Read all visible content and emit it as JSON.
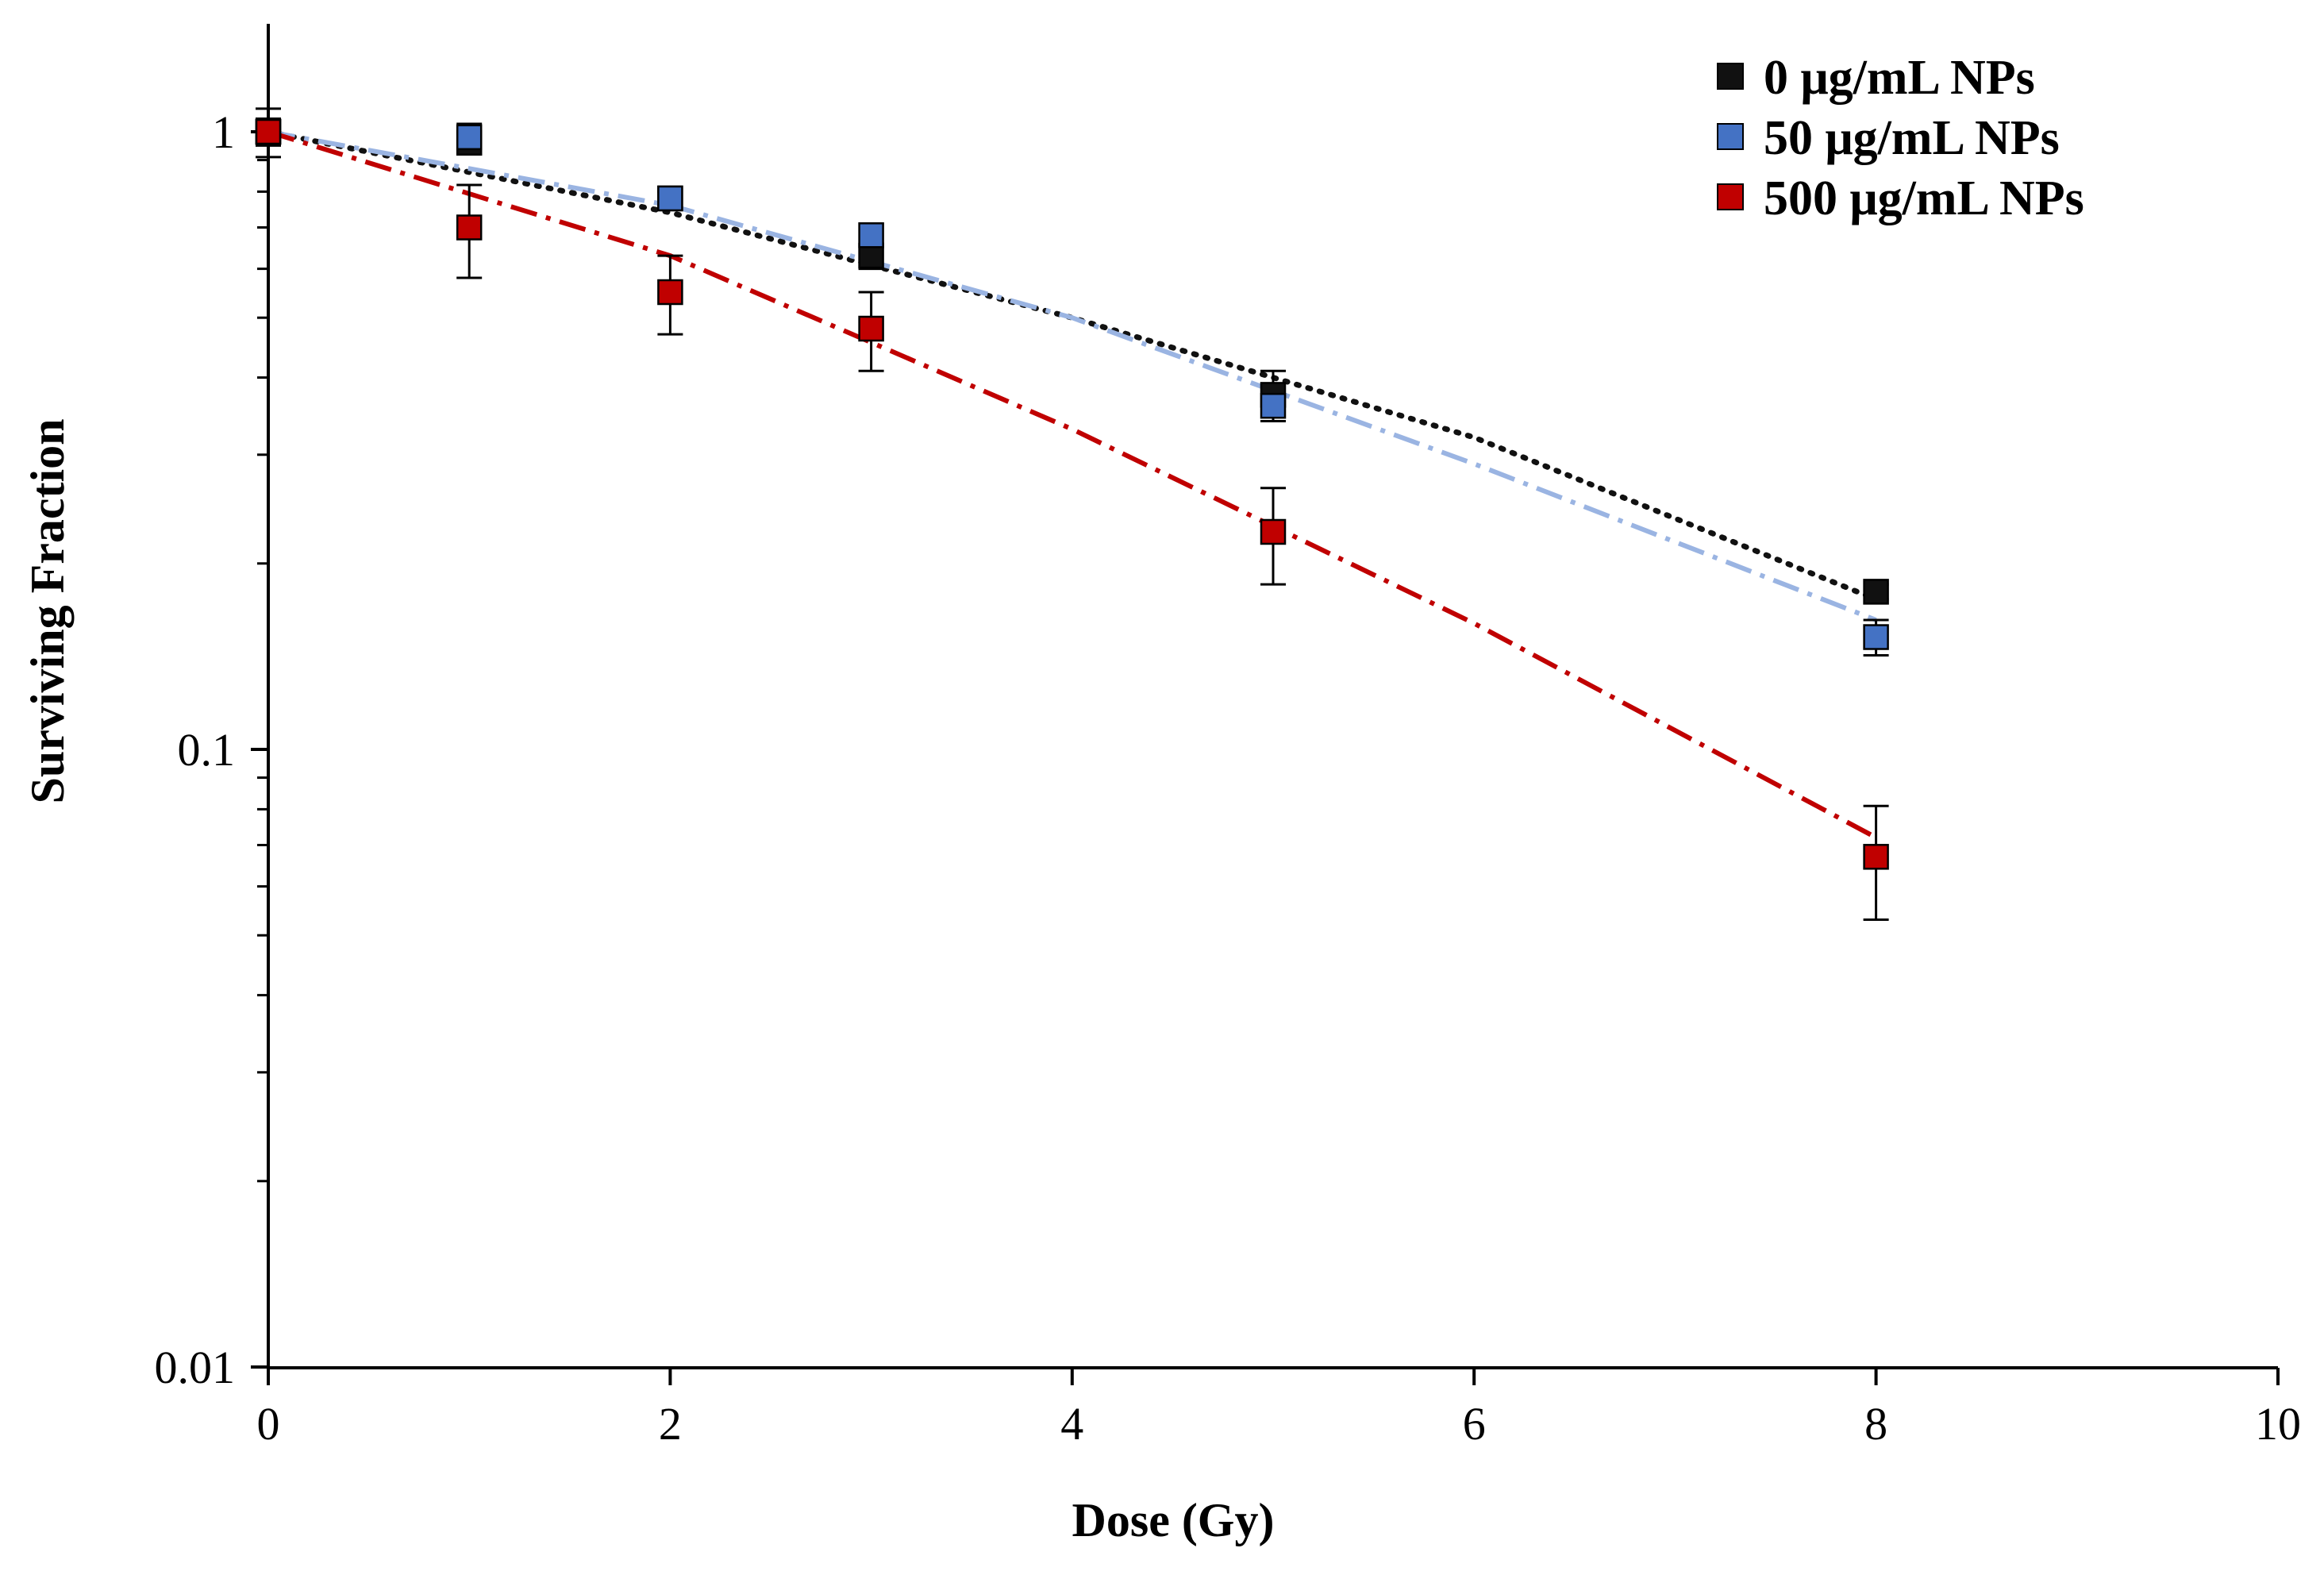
{
  "chart_data": {
    "type": "scatter",
    "title": "",
    "xlabel": "Dose (Gy)",
    "ylabel": "Surviving Fraction",
    "xlim": [
      0,
      10
    ],
    "ylim": [
      0.01,
      1
    ],
    "yscale": "log",
    "x_ticks": [
      "0",
      "2",
      "4",
      "6",
      "8",
      "10"
    ],
    "y_ticks": [
      "0.01",
      "0.1",
      "1"
    ],
    "grid": false,
    "legend_position": "top-right",
    "series": [
      {
        "name": "0 μg/mL  NPs",
        "color": "#111111",
        "fit_color": "#111111",
        "fit_style": "dotted",
        "x": [
          0,
          1,
          2,
          3,
          5,
          8
        ],
        "y": [
          1.0,
          0.96,
          0.78,
          0.63,
          0.375,
          0.18
        ],
        "err": [
          0.09,
          0.04,
          0.02,
          0.03,
          0.035,
          0.005
        ],
        "fit_x": [
          0,
          2,
          4,
          6,
          8
        ],
        "fit_y": [
          1.0,
          0.74,
          0.5,
          0.32,
          0.175
        ]
      },
      {
        "name": "50 μg/mL  NPs",
        "color": "#4472c4",
        "fit_color": "#9ab4e2",
        "fit_style": "dash-dot",
        "x": [
          0,
          1,
          2,
          3,
          5,
          8
        ],
        "y": [
          1.0,
          0.98,
          0.78,
          0.68,
          0.36,
          0.152
        ],
        "err": [
          0.05,
          0.05,
          0.02,
          0.03,
          0.02,
          0.01
        ],
        "fit_x": [
          0,
          2,
          4,
          6,
          8
        ],
        "fit_y": [
          1.0,
          0.76,
          0.5,
          0.29,
          0.162
        ]
      },
      {
        "name": "500 μg/mL  NPs",
        "color": "#c00000",
        "fit_color": "#c00000",
        "fit_style": "dash-dot",
        "x": [
          0,
          1,
          2,
          3,
          5,
          8
        ],
        "y": [
          1.0,
          0.7,
          0.55,
          0.48,
          0.225,
          0.067
        ],
        "err": [
          0.02,
          0.12,
          0.08,
          0.07,
          0.04,
          0.014
        ],
        "fit_x": [
          0,
          2,
          4,
          6,
          8
        ],
        "fit_y": [
          1.0,
          0.63,
          0.33,
          0.16,
          0.072
        ]
      }
    ]
  }
}
